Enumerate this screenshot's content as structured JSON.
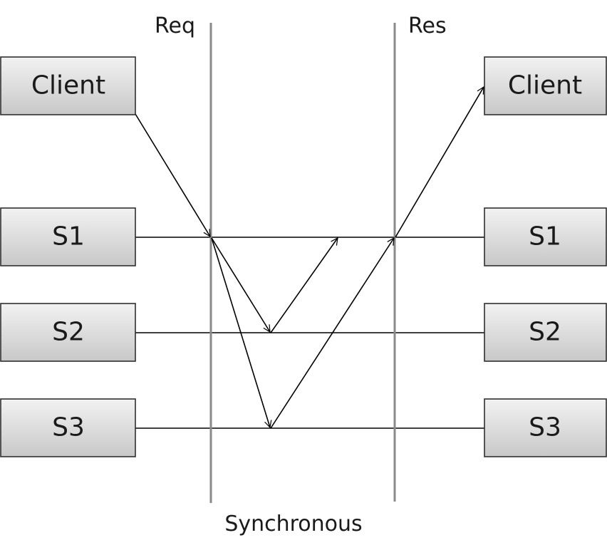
{
  "diagram": {
    "phases": {
      "request": "Req",
      "response": "Res"
    },
    "caption": "Synchronous",
    "left_nodes": [
      "Client",
      "S1",
      "S2",
      "S3"
    ],
    "right_nodes": [
      "Client",
      "S1",
      "S2",
      "S3"
    ],
    "colors": {
      "node_fill_top": "#f2f2f2",
      "node_fill_bottom": "#c8c8c8",
      "node_border": "#2f2f2f",
      "phase_line": "#8a8a8a",
      "arrow": "#000000"
    }
  }
}
